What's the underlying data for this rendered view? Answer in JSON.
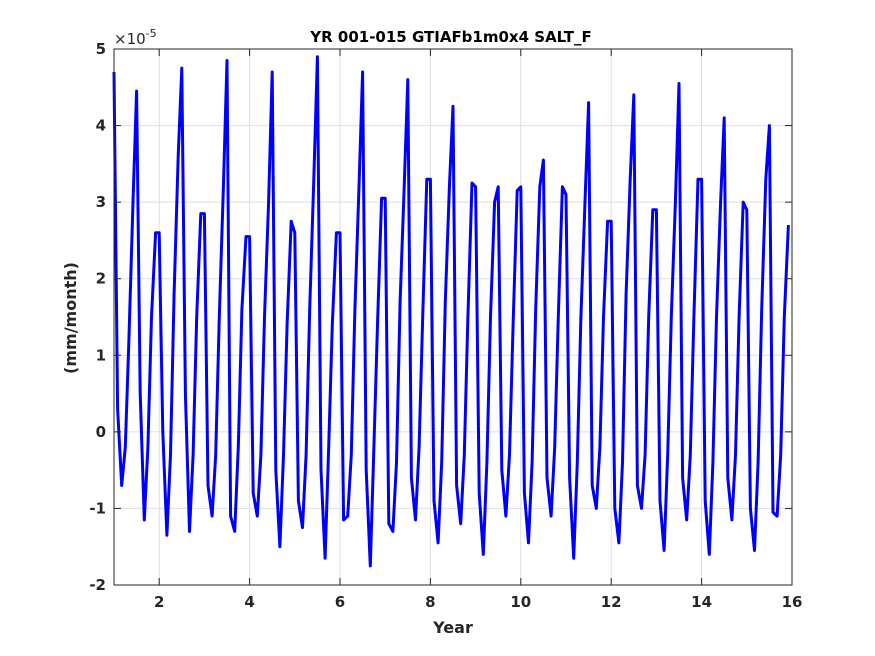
{
  "chart_data": {
    "type": "line",
    "title": "YR 001-015 GTIAFb1m0x4 SALT_F",
    "xlabel": "Year",
    "ylabel": "(mm/month)",
    "exponent_label": "×10",
    "exponent_power": "-5",
    "xlim": [
      1,
      16
    ],
    "ylim": [
      -2,
      5
    ],
    "xticks": [
      2,
      4,
      6,
      8,
      10,
      12,
      14,
      16
    ],
    "yticks": [
      -2,
      -1,
      0,
      1,
      2,
      3,
      4,
      5
    ],
    "grid": true,
    "line_color": "#0000ff",
    "x": [
      1.0,
      1.08,
      1.17,
      1.25,
      1.33,
      1.42,
      1.5,
      1.58,
      1.67,
      1.75,
      1.83,
      1.92,
      2.0,
      2.08,
      2.17,
      2.25,
      2.33,
      2.42,
      2.5,
      2.58,
      2.67,
      2.75,
      2.83,
      2.92,
      3.0,
      3.08,
      3.17,
      3.25,
      3.33,
      3.42,
      3.5,
      3.58,
      3.67,
      3.75,
      3.83,
      3.92,
      4.0,
      4.08,
      4.17,
      4.25,
      4.33,
      4.42,
      4.5,
      4.58,
      4.67,
      4.75,
      4.83,
      4.92,
      5.0,
      5.08,
      5.17,
      5.25,
      5.33,
      5.42,
      5.5,
      5.58,
      5.67,
      5.75,
      5.83,
      5.92,
      6.0,
      6.08,
      6.17,
      6.25,
      6.33,
      6.42,
      6.5,
      6.58,
      6.67,
      6.75,
      6.83,
      6.92,
      7.0,
      7.08,
      7.17,
      7.25,
      7.33,
      7.42,
      7.5,
      7.58,
      7.67,
      7.75,
      7.83,
      7.92,
      8.0,
      8.08,
      8.17,
      8.25,
      8.33,
      8.42,
      8.5,
      8.58,
      8.67,
      8.75,
      8.83,
      8.92,
      9.0,
      9.08,
      9.17,
      9.25,
      9.33,
      9.42,
      9.5,
      9.58,
      9.67,
      9.75,
      9.83,
      9.92,
      10.0,
      10.08,
      10.17,
      10.25,
      10.33,
      10.42,
      10.5,
      10.58,
      10.67,
      10.75,
      10.83,
      10.92,
      11.0,
      11.08,
      11.17,
      11.25,
      11.33,
      11.42,
      11.5,
      11.58,
      11.67,
      11.75,
      11.83,
      11.92,
      12.0,
      12.08,
      12.17,
      12.25,
      12.33,
      12.42,
      12.5,
      12.58,
      12.67,
      12.75,
      12.83,
      12.92,
      13.0,
      13.08,
      13.17,
      13.25,
      13.33,
      13.42,
      13.5,
      13.58,
      13.67,
      13.75,
      13.83,
      13.92,
      14.0,
      14.08,
      14.17,
      14.25,
      14.33,
      14.42,
      14.5,
      14.58,
      14.67,
      14.75,
      14.83,
      14.92,
      15.0,
      15.08,
      15.17,
      15.25,
      15.33,
      15.42,
      15.5,
      15.58,
      15.67,
      15.75,
      15.83,
      15.92
    ],
    "values": [
      4.7,
      0.3,
      -0.7,
      -0.2,
      1.2,
      3.0,
      4.45,
      0.5,
      -1.15,
      -0.2,
      1.5,
      2.6,
      2.6,
      0.0,
      -1.35,
      -0.3,
      1.8,
      3.6,
      4.75,
      0.5,
      -1.3,
      -0.3,
      1.5,
      2.85,
      2.85,
      -0.7,
      -1.1,
      -0.3,
      1.5,
      3.2,
      4.85,
      -1.1,
      -1.3,
      -0.2,
      1.6,
      2.55,
      2.55,
      -0.8,
      -1.1,
      -0.3,
      1.5,
      3.0,
      4.7,
      -0.5,
      -1.5,
      -0.3,
      1.4,
      2.75,
      2.6,
      -0.9,
      -1.25,
      -0.3,
      1.6,
      3.3,
      4.9,
      -0.5,
      -1.65,
      -0.2,
      1.4,
      2.6,
      2.6,
      -1.15,
      -1.1,
      -0.3,
      1.6,
      3.2,
      4.7,
      -0.5,
      -1.75,
      -0.2,
      1.4,
      3.05,
      3.05,
      -1.2,
      -1.3,
      -0.4,
      1.7,
      3.2,
      4.6,
      -0.6,
      -1.15,
      -0.2,
      1.5,
      3.3,
      3.3,
      -0.9,
      -1.45,
      -0.4,
      1.7,
      3.2,
      4.25,
      -0.7,
      -1.2,
      -0.3,
      1.5,
      3.25,
      3.2,
      -0.8,
      -1.6,
      -0.4,
      1.5,
      3.0,
      3.2,
      -0.5,
      -1.1,
      -0.3,
      1.4,
      3.15,
      3.2,
      -0.8,
      -1.45,
      -0.4,
      1.6,
      3.2,
      3.55,
      -0.6,
      -1.1,
      -0.2,
      1.5,
      3.2,
      3.1,
      -0.6,
      -1.65,
      -0.4,
      1.5,
      3.0,
      4.3,
      -0.7,
      -1.0,
      -0.2,
      1.5,
      2.75,
      2.75,
      -1.0,
      -1.45,
      -0.4,
      1.8,
      3.3,
      4.4,
      -0.7,
      -1.0,
      -0.3,
      1.5,
      2.9,
      2.9,
      -0.9,
      -1.55,
      -0.3,
      1.5,
      3.0,
      4.55,
      -0.6,
      -1.15,
      -0.3,
      1.5,
      3.3,
      3.3,
      -0.9,
      -1.6,
      -0.4,
      1.5,
      3.0,
      4.1,
      -0.6,
      -1.15,
      -0.3,
      1.5,
      3.0,
      2.9,
      -1.0,
      -1.55,
      -0.4,
      1.6,
      3.3,
      4.0,
      -1.05,
      -1.1,
      -0.3,
      1.5,
      2.7
    ]
  }
}
